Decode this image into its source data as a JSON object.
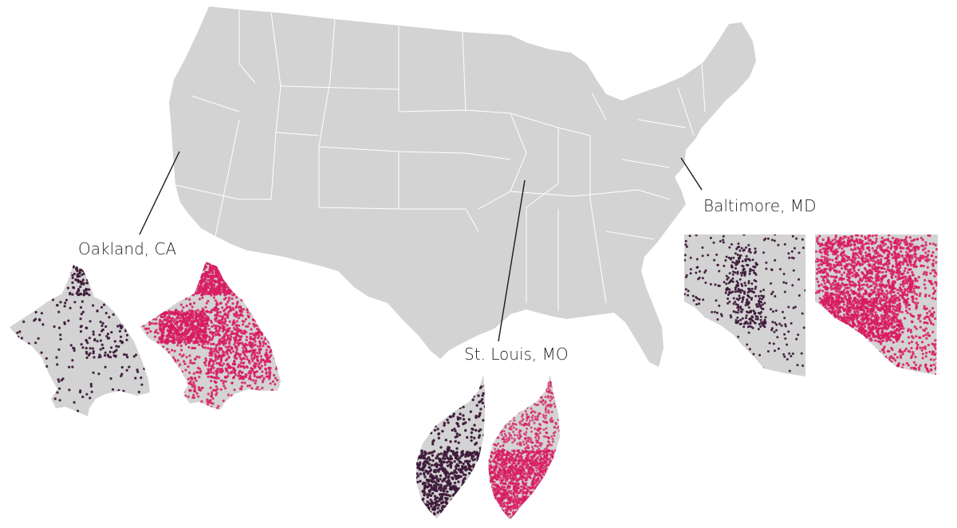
{
  "map": {
    "land_color": "#d3d3d3",
    "border_color": "#ffffff",
    "leader_color": "#1a1a1a"
  },
  "legend": {
    "dark_dot_color": "#3d1a3a",
    "pink_dot_color": "#d81b60"
  },
  "cities": [
    {
      "id": "oakland",
      "label": "Oakland, CA"
    },
    {
      "id": "stlouis",
      "label": "St. Louis, MO"
    },
    {
      "id": "baltimore",
      "label": "Baltimore, MD"
    }
  ]
}
